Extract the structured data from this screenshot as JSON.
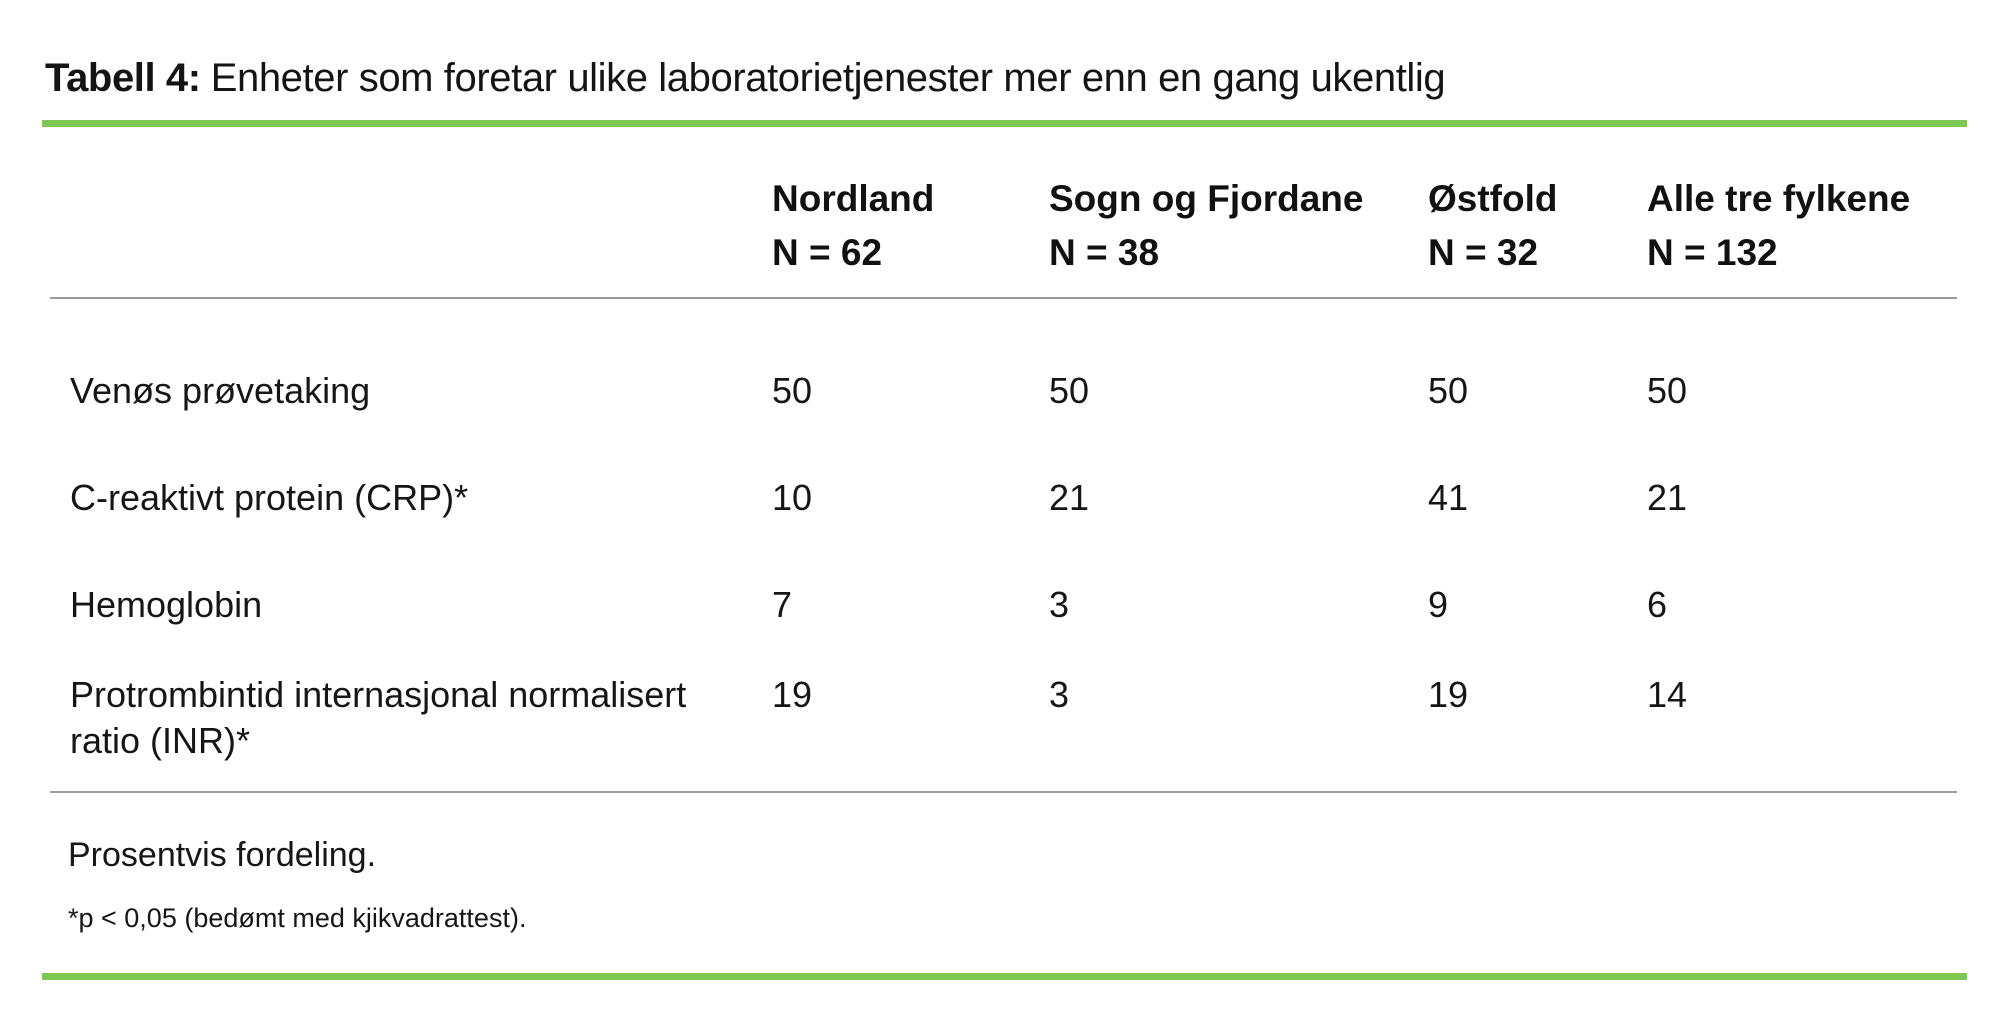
{
  "title": {
    "prefix": "Tabell 4:",
    "text": "Enheter som foretar ulike laboratorietjenester mer enn en gang ukentlig"
  },
  "table": {
    "columns": [
      {
        "name": "Nordland",
        "n": "N = 62"
      },
      {
        "name": "Sogn og Fjordane",
        "n": "N = 38"
      },
      {
        "name": "Østfold",
        "n": "N = 32"
      },
      {
        "name": "Alle tre fylkene",
        "n": "N = 132"
      }
    ],
    "rows": [
      {
        "label": "Venøs prøvetaking",
        "values": [
          "50",
          "50",
          "50",
          "50"
        ]
      },
      {
        "label": "C-reaktivt protein (CRP)*",
        "values": [
          "10",
          "21",
          "41",
          "21"
        ]
      },
      {
        "label": "Hemoglobin",
        "values": [
          "7",
          "3",
          "9",
          "6"
        ]
      },
      {
        "label": "Protrombintid internasjonal normalisert ratio (INR)*",
        "values": [
          "19",
          "3",
          "19",
          "14"
        ]
      }
    ]
  },
  "footnotes": {
    "primary": "Prosentvis fordeling.",
    "secondary": "*p < 0,05 (bedømt med kjikvadrattest)."
  },
  "colors": {
    "accent_green": "#7dc752",
    "rule_gray": "#9c9c9c",
    "text": "#161616"
  },
  "chart_data": {
    "type": "table",
    "title": "Tabell 4: Enheter som foretar ulike laboratorietjenester mer enn en gang ukentlig",
    "columns": [
      "Nordland N = 62",
      "Sogn og Fjordane N = 38",
      "Østfold N = 32",
      "Alle tre fylkene N = 132"
    ],
    "rows": [
      {
        "label": "Venøs prøvetaking",
        "values": [
          50,
          50,
          50,
          50
        ]
      },
      {
        "label": "C-reaktivt protein (CRP)*",
        "values": [
          10,
          21,
          41,
          21
        ]
      },
      {
        "label": "Hemoglobin",
        "values": [
          7,
          3,
          9,
          6
        ]
      },
      {
        "label": "Protrombintid internasjonal normalisert ratio (INR)*",
        "values": [
          19,
          3,
          19,
          14
        ]
      }
    ],
    "notes": [
      "Prosentvis fordeling.",
      "*p < 0,05 (bedømt med kjikvadrattest)."
    ]
  }
}
